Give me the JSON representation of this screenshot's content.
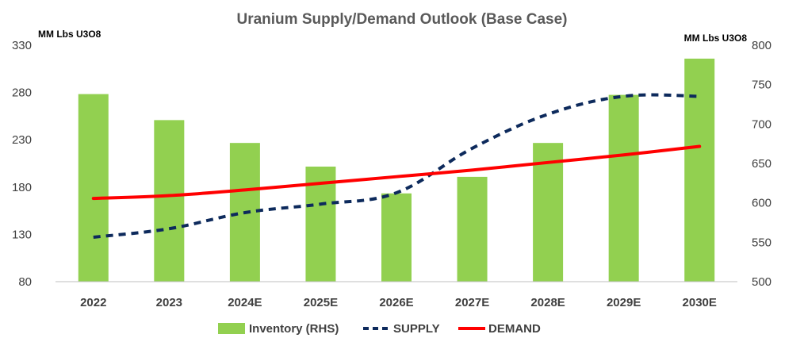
{
  "chart_data": {
    "type": "bar",
    "title": "Uranium Supply/Demand  Outlook (Base Case)",
    "left_axis_label": "MM Lbs U3O8",
    "right_axis_label": "MM Lbs U3O8",
    "categories": [
      "2022",
      "2023",
      "2024E",
      "2025E",
      "2026E",
      "2027E",
      "2028E",
      "2029E",
      "2030E"
    ],
    "left_axis": {
      "ylim": [
        80,
        330
      ],
      "ticks": [
        80,
        130,
        180,
        230,
        280,
        330
      ]
    },
    "right_axis": {
      "ylim": [
        500,
        800
      ],
      "ticks": [
        500,
        550,
        600,
        650,
        700,
        750,
        800
      ]
    },
    "series": [
      {
        "name": "Inventory (RHS)",
        "type": "bar",
        "axis": "right",
        "color": "#92D050",
        "values": [
          738,
          705,
          676,
          646,
          612,
          633,
          676,
          737,
          783
        ]
      },
      {
        "name": "SUPPLY",
        "type": "line",
        "style": "dashed",
        "axis": "left",
        "color": "#0D2A5C",
        "values": [
          127,
          136,
          153,
          162,
          174,
          221,
          257,
          276,
          276
        ]
      },
      {
        "name": "DEMAND",
        "type": "line",
        "style": "solid",
        "axis": "left",
        "color": "#FF0000",
        "values": [
          168,
          171,
          177,
          184,
          191,
          198,
          206,
          214,
          223
        ]
      }
    ],
    "grid": false,
    "legend_position": "bottom"
  }
}
